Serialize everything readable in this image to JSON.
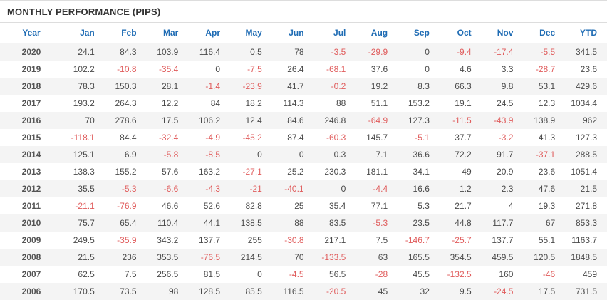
{
  "page": {
    "title": "MONTHLY PERFORMANCE (PIPS)"
  },
  "colors": {
    "header_text": "#1f6cb4",
    "negative_value": "#e05c5c",
    "positive_value": "#4a4a4a",
    "row_stripe": "#f4f4f4"
  },
  "chart_data": {
    "type": "table",
    "title": "MONTHLY PERFORMANCE (PIPS)",
    "columns": [
      "Year",
      "Jan",
      "Feb",
      "Mar",
      "Apr",
      "May",
      "Jun",
      "Jul",
      "Aug",
      "Sep",
      "Oct",
      "Nov",
      "Dec",
      "YTD"
    ],
    "rows": [
      [
        "2020",
        "24.1",
        "84.3",
        "103.9",
        "116.4",
        "0.5",
        "78",
        "-3.5",
        "-29.9",
        "0",
        "-9.4",
        "-17.4",
        "-5.5",
        "341.5"
      ],
      [
        "2019",
        "102.2",
        "-10.8",
        "-35.4",
        "0",
        "-7.5",
        "26.4",
        "-68.1",
        "37.6",
        "0",
        "4.6",
        "3.3",
        "-28.7",
        "23.6"
      ],
      [
        "2018",
        "78.3",
        "150.3",
        "28.1",
        "-1.4",
        "-23.9",
        "41.7",
        "-0.2",
        "19.2",
        "8.3",
        "66.3",
        "9.8",
        "53.1",
        "429.6"
      ],
      [
        "2017",
        "193.2",
        "264.3",
        "12.2",
        "84",
        "18.2",
        "114.3",
        "88",
        "51.1",
        "153.2",
        "19.1",
        "24.5",
        "12.3",
        "1034.4"
      ],
      [
        "2016",
        "70",
        "278.6",
        "17.5",
        "106.2",
        "12.4",
        "84.6",
        "246.8",
        "-64.9",
        "127.3",
        "-11.5",
        "-43.9",
        "138.9",
        "962"
      ],
      [
        "2015",
        "-118.1",
        "84.4",
        "-32.4",
        "-4.9",
        "-45.2",
        "87.4",
        "-60.3",
        "145.7",
        "-5.1",
        "37.7",
        "-3.2",
        "41.3",
        "127.3"
      ],
      [
        "2014",
        "125.1",
        "6.9",
        "-5.8",
        "-8.5",
        "0",
        "0",
        "0.3",
        "7.1",
        "36.6",
        "72.2",
        "91.7",
        "-37.1",
        "288.5"
      ],
      [
        "2013",
        "138.3",
        "155.2",
        "57.6",
        "163.2",
        "-27.1",
        "25.2",
        "230.3",
        "181.1",
        "34.1",
        "49",
        "20.9",
        "23.6",
        "1051.4"
      ],
      [
        "2012",
        "35.5",
        "-5.3",
        "-6.6",
        "-4.3",
        "-21",
        "-40.1",
        "0",
        "-4.4",
        "16.6",
        "1.2",
        "2.3",
        "47.6",
        "21.5"
      ],
      [
        "2011",
        "-21.1",
        "-76.9",
        "46.6",
        "52.6",
        "82.8",
        "25",
        "35.4",
        "77.1",
        "5.3",
        "21.7",
        "4",
        "19.3",
        "271.8"
      ],
      [
        "2010",
        "75.7",
        "65.4",
        "110.4",
        "44.1",
        "138.5",
        "88",
        "83.5",
        "-5.3",
        "23.5",
        "44.8",
        "117.7",
        "67",
        "853.3"
      ],
      [
        "2009",
        "249.5",
        "-35.9",
        "343.2",
        "137.7",
        "255",
        "-30.8",
        "217.1",
        "7.5",
        "-146.7",
        "-25.7",
        "137.7",
        "55.1",
        "1163.7"
      ],
      [
        "2008",
        "21.5",
        "236",
        "353.5",
        "-76.5",
        "214.5",
        "70",
        "-133.5",
        "63",
        "165.5",
        "354.5",
        "459.5",
        "120.5",
        "1848.5"
      ],
      [
        "2007",
        "62.5",
        "7.5",
        "256.5",
        "81.5",
        "0",
        "-4.5",
        "56.5",
        "-28",
        "45.5",
        "-132.5",
        "160",
        "-46",
        "459"
      ],
      [
        "2006",
        "170.5",
        "73.5",
        "98",
        "128.5",
        "85.5",
        "116.5",
        "-20.5",
        "45",
        "32",
        "9.5",
        "-24.5",
        "17.5",
        "731.5"
      ]
    ]
  }
}
